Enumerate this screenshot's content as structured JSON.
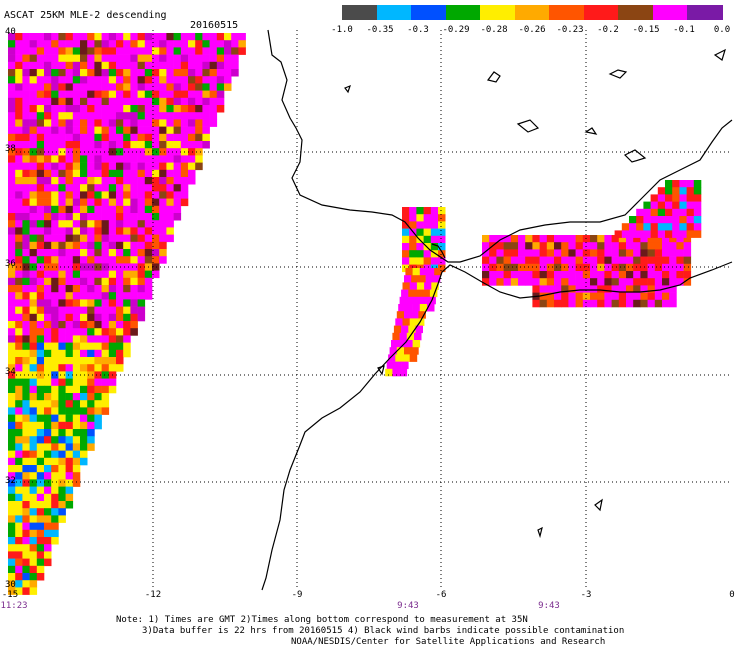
{
  "title": "ASCAT 25KM MLE-2 descending",
  "date": "20160515",
  "colorbar": {
    "ticks": [
      "-1.0",
      "-0.35",
      "-0.3",
      "-0.29",
      "-0.28",
      "-0.26",
      "-0.23",
      "-0.2",
      "-0.15",
      "-0.1",
      "0.0"
    ],
    "colors": [
      "#4b4b4b",
      "#00b7ff",
      "#0050ff",
      "#00a800",
      "#ffee00",
      "#ffaa00",
      "#ff5500",
      "#ff1a1a",
      "#8b4513",
      "#ff00ff",
      "#7a1aa6"
    ]
  },
  "lat_labels": [
    "40",
    "38",
    "36",
    "34",
    "32",
    "30"
  ],
  "lon_labels": [
    "-15",
    "-12",
    "-9",
    "-6",
    "-3",
    "0"
  ],
  "time_labels": [
    "11:23",
    "9:43",
    "9:43"
  ],
  "note": {
    "line1": "Note: 1) Times are GMT 2)Times along bottom correspond to measurement at 35N",
    "line2": "3)Data buffer is 22 hrs from 20160515 4) Black wind barbs indicate possible contamination",
    "line3": "NOAA/NESDIS/Center for Satellite Applications and Research"
  },
  "swath_colors": [
    "#ff00ff",
    "#cc00cc",
    "#ffee00",
    "#ff1a1a",
    "#ff5500",
    "#ffaa00",
    "#00a800",
    "#0050ff",
    "#00b7ff",
    "#8b4513",
    "#7a1aa6",
    "#6b1a1a"
  ]
}
